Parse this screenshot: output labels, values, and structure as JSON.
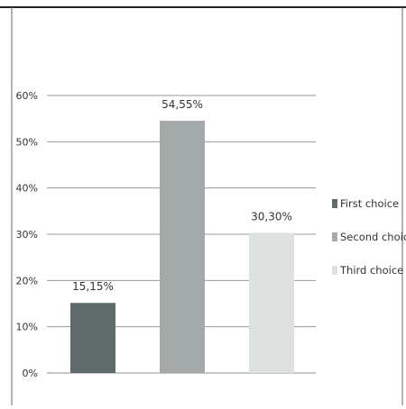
{
  "chart_data": {
    "type": "bar",
    "categories": [
      "First choice",
      "Second choice",
      "Third choice"
    ],
    "values": [
      15.15,
      54.55,
      30.3
    ],
    "value_labels": [
      "15,15%",
      "54,55%",
      "30,30%"
    ],
    "ylim": [
      0,
      60
    ],
    "ytick_values": [
      0,
      10,
      20,
      30,
      40,
      50,
      60
    ],
    "ytick_labels": [
      "0%",
      "10%",
      "20%",
      "30%",
      "40%",
      "50%",
      "60%"
    ],
    "grid": true,
    "legend_position": "right",
    "colors": [
      "#5f6b6a",
      "#a3aaa9",
      "#dde1df"
    ],
    "title": "",
    "xlabel": "",
    "ylabel": ""
  }
}
